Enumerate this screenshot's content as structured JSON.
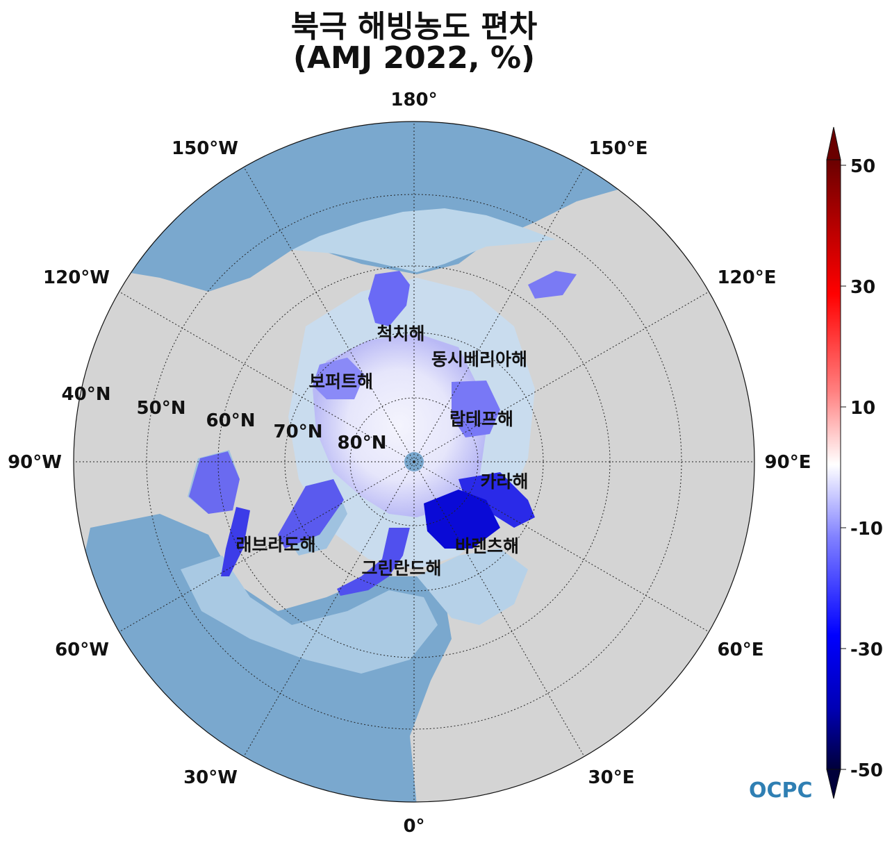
{
  "title": {
    "line1": "북극 해빙농도 편차",
    "line2": "(AMJ 2022, %)"
  },
  "longitude_labels": [
    "180°",
    "150°E",
    "120°E",
    "90°E",
    "60°E",
    "30°E",
    "0°",
    "30°W",
    "60°W",
    "90°W",
    "120°W",
    "150°W"
  ],
  "latitude_labels": [
    "40°N",
    "50°N",
    "60°N",
    "70°N",
    "80°N"
  ],
  "seas": [
    {
      "name": "척치해"
    },
    {
      "name": "동시베리아해"
    },
    {
      "name": "보퍼트해"
    },
    {
      "name": "랍테프해"
    },
    {
      "name": "카라해"
    },
    {
      "name": "바렌츠해"
    },
    {
      "name": "래브라도해"
    },
    {
      "name": "그린란드해"
    }
  ],
  "colorbar": {
    "ticks": [
      "50",
      "30",
      "10",
      "-10",
      "-30",
      "-50"
    ],
    "min": -50,
    "max": 50,
    "colors": [
      "#00003a",
      "#0000b4",
      "#0000ff",
      "#8080ff",
      "#ffffff",
      "#ff8080",
      "#ff0000",
      "#b00000",
      "#6a0000"
    ]
  },
  "logo": {
    "text": "OCPC"
  },
  "colors": {
    "land": "#d4d4d4",
    "ocean": "#7aa8ce",
    "ice": "#ecedfb",
    "anomaly_blue": "#2222ee"
  }
}
